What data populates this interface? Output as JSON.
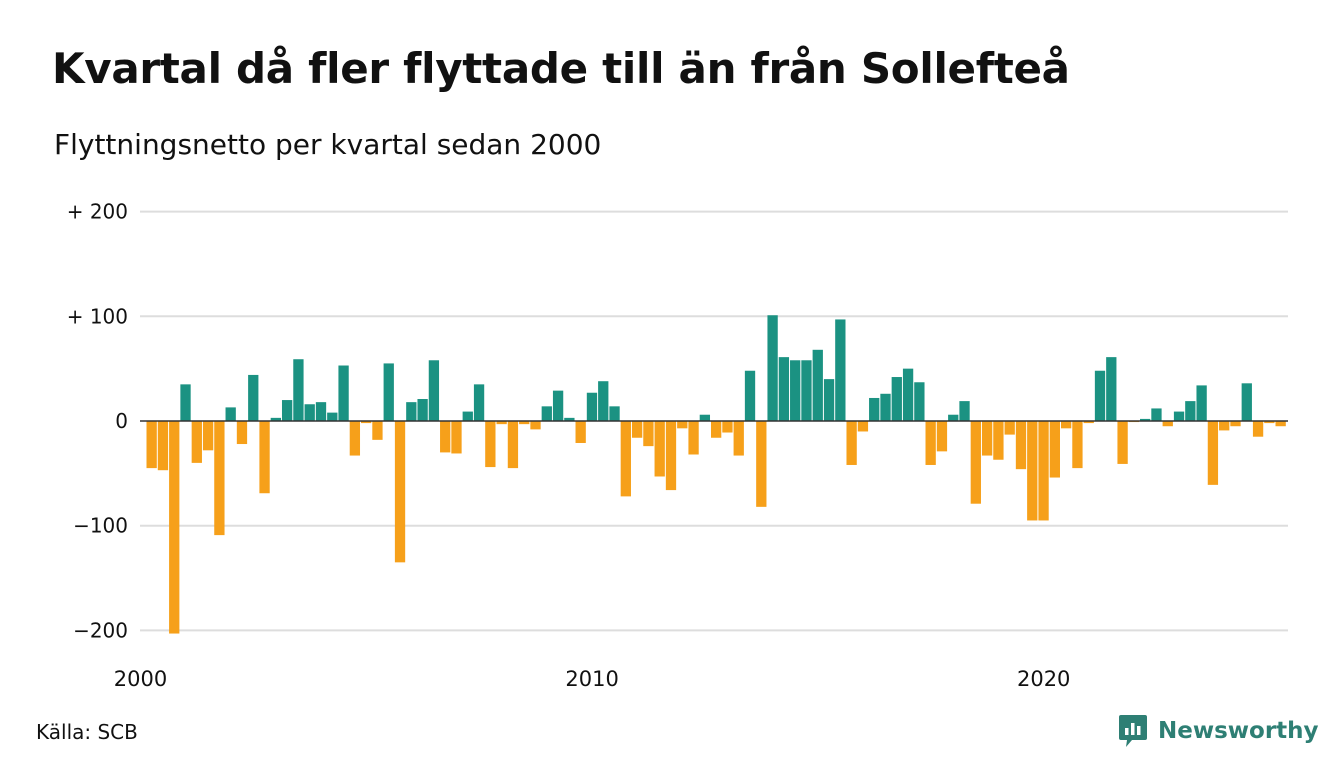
{
  "header": {
    "title": "Kvartal då fler flyttade till än från Sollefteå",
    "subtitle": "Flyttningsnetto per kvartal sedan 2000"
  },
  "footer": {
    "source": "Källa: SCB",
    "brand": "Newsworthy"
  },
  "colors": {
    "positive": "#1b9282",
    "negative": "#f6a01a",
    "grid": "#dddddd",
    "zero_line": "#333333",
    "brand": "#2e7f74"
  },
  "chart_data": {
    "type": "bar",
    "title": "Kvartal då fler flyttade till än från Sollefteå",
    "subtitle": "Flyttningsnetto per kvartal sedan 2000",
    "x_start": "2000 Q1",
    "x_tick_labels": [
      "2000",
      "2010",
      "2020"
    ],
    "y_tick_values": [
      200,
      100,
      0,
      -100,
      -200
    ],
    "y_tick_labels": [
      "+ 200",
      "+ 100",
      "0",
      "−100",
      "−200"
    ],
    "ylim": [
      -215,
      215
    ],
    "grid": true,
    "values": [
      -45,
      -47,
      -203,
      35,
      -40,
      -28,
      -109,
      13,
      -22,
      44,
      -69,
      3,
      20,
      59,
      16,
      18,
      8,
      53,
      -33,
      -2,
      -18,
      55,
      -135,
      18,
      21,
      58,
      -30,
      -31,
      9,
      35,
      -44,
      -3,
      -45,
      -3,
      -8,
      14,
      29,
      3,
      -21,
      27,
      38,
      14,
      -72,
      -16,
      -24,
      -53,
      -66,
      -7,
      -32,
      6,
      -16,
      -11,
      -33,
      48,
      -82,
      101,
      61,
      58,
      58,
      68,
      40,
      97,
      -42,
      -10,
      22,
      26,
      42,
      50,
      37,
      -42,
      -29,
      6,
      19,
      -79,
      -33,
      -37,
      -13,
      -46,
      -95,
      -95,
      -54,
      -7,
      -45,
      -2,
      48,
      61,
      -41,
      -1,
      2,
      12,
      -5,
      9,
      19,
      34,
      -61,
      -9,
      -5,
      36,
      -15,
      -2,
      -5
    ]
  }
}
